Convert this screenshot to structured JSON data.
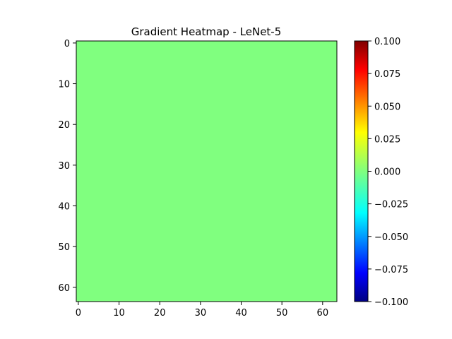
{
  "chart_data": {
    "type": "heatmap",
    "title": "Gradient Heatmap - LeNet-5",
    "xlabel": "",
    "ylabel": "",
    "grid": false,
    "x_range": [
      -0.5,
      63.5
    ],
    "y_range": [
      -0.5,
      63.5
    ],
    "y_inverted": true,
    "x_ticks": [
      0,
      10,
      20,
      30,
      40,
      50,
      60
    ],
    "y_ticks": [
      0,
      10,
      20,
      30,
      40,
      50,
      60
    ],
    "x_tick_labels": [
      "0",
      "10",
      "20",
      "30",
      "40",
      "50",
      "60"
    ],
    "y_tick_labels": [
      "0",
      "10",
      "20",
      "30",
      "40",
      "50",
      "60"
    ],
    "rows": 64,
    "cols": 64,
    "uniform_value": 0.0,
    "colormap": "jet",
    "colorbar": {
      "range": [
        -0.1,
        0.1
      ],
      "ticks": [
        0.1,
        0.075,
        0.05,
        0.025,
        0.0,
        -0.025,
        -0.05,
        -0.075,
        -0.1
      ],
      "tick_labels": [
        "0.100",
        "0.075",
        "0.050",
        "0.025",
        "0.000",
        "−0.025",
        "−0.050",
        "−0.075",
        "−0.100"
      ],
      "placement": "right"
    },
    "colors": {
      "cell_fill": "#80ff7f",
      "axis": "#000000"
    }
  }
}
